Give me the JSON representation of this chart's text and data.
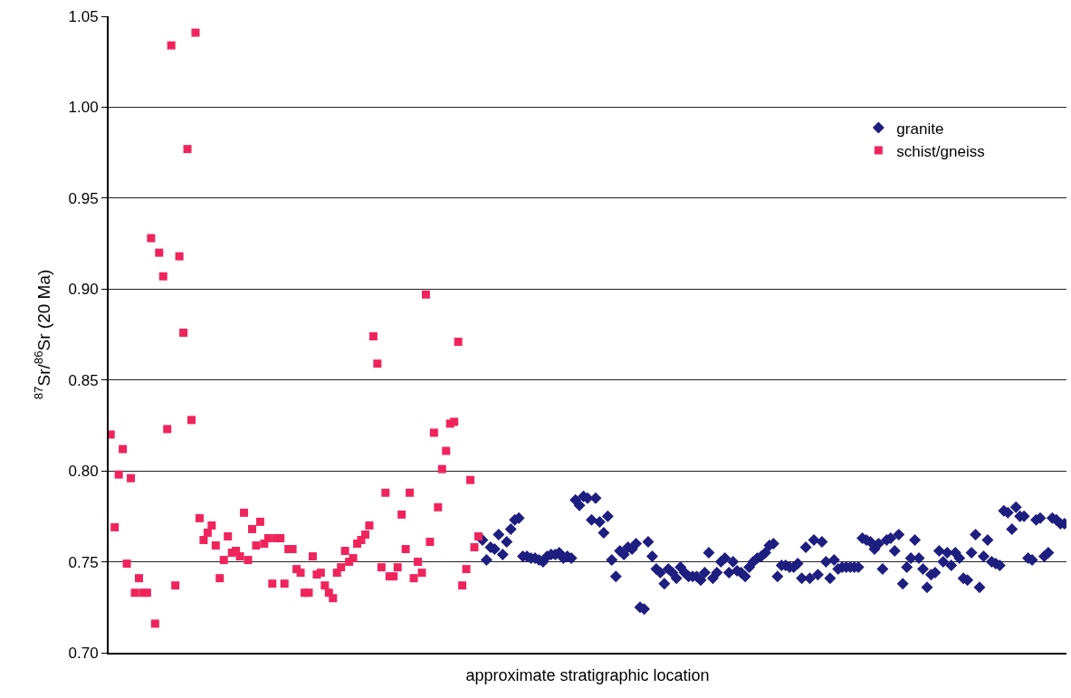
{
  "chart_data": {
    "type": "scatter",
    "xlabel": "approximate stratigraphic location",
    "ylabel": "$^{87}$Sr/$^{86}$Sr (20 Ma)",
    "ylim": [
      0.7,
      1.05
    ],
    "yticks": [
      {
        "value": 0.7,
        "label": "0.70"
      },
      {
        "value": 0.75,
        "label": "0.75"
      },
      {
        "value": 0.8,
        "label": "0.80"
      },
      {
        "value": 0.85,
        "label": "0.85"
      },
      {
        "value": 0.9,
        "label": "0.90"
      },
      {
        "value": 0.95,
        "label": "0.95"
      },
      {
        "value": 1.0,
        "label": "1.00"
      },
      {
        "value": 1.05,
        "label": "1.05"
      }
    ],
    "grid": "y",
    "legend": "top right",
    "categories": [
      null,
      null,
      null,
      null,
      null,
      null,
      null,
      null,
      null,
      null,
      null,
      null,
      null,
      null,
      null,
      null,
      null,
      null,
      null,
      null,
      null,
      null,
      null,
      null,
      null,
      null,
      null,
      null,
      null,
      null,
      null,
      null,
      null,
      null,
      null,
      null,
      null,
      null,
      null,
      null,
      null,
      null,
      null,
      null,
      null,
      null,
      null,
      null,
      null,
      null,
      null,
      null,
      null,
      null,
      null,
      null,
      null,
      null,
      null,
      null,
      null,
      null,
      null,
      null,
      null,
      null,
      null,
      null,
      null,
      null,
      null,
      null,
      null,
      null,
      null,
      null,
      null,
      null,
      null,
      null,
      null,
      null,
      null,
      null,
      null,
      null,
      null,
      null,
      null,
      null,
      null,
      null,
      null,
      null,
      null,
      null,
      null,
      null,
      null,
      null,
      null,
      null,
      null,
      null,
      null,
      null,
      null,
      null,
      null,
      null,
      null,
      null,
      null,
      null,
      null,
      null,
      null,
      null,
      null,
      null,
      null,
      null,
      null,
      null,
      null,
      null,
      null,
      null,
      null,
      null,
      null,
      null,
      null,
      null,
      null,
      null,
      null,
      null,
      null,
      null,
      null,
      null,
      null,
      null,
      null,
      null,
      null,
      null,
      null,
      null,
      null,
      null,
      null,
      null,
      null,
      null,
      null,
      null,
      null,
      null,
      null,
      null,
      null,
      null,
      null,
      null,
      null,
      null,
      null,
      null,
      null,
      null,
      null,
      null,
      null,
      null,
      null,
      null,
      null,
      null,
      null,
      null,
      null,
      null,
      null,
      null,
      null,
      null,
      null,
      null,
      null,
      null,
      null,
      null,
      null,
      null,
      null,
      null,
      null,
      null,
      null,
      null,
      null,
      null,
      null,
      null,
      null,
      null,
      null,
      null,
      null,
      null,
      null,
      null,
      null,
      null,
      null,
      null,
      null,
      null,
      null,
      null,
      null,
      null,
      null,
      null,
      null,
      null,
      null,
      null,
      null,
      null,
      null,
      null,
      null,
      null,
      null
    ],
    "series": [
      {
        "name": "granite",
        "color": "#1e1e80",
        "marker": "diamond",
        "values": [
          null,
          null,
          null,
          null,
          null,
          null,
          null,
          null,
          null,
          null,
          null,
          null,
          null,
          null,
          null,
          null,
          null,
          null,
          null,
          null,
          null,
          null,
          null,
          null,
          null,
          null,
          null,
          null,
          null,
          null,
          null,
          null,
          null,
          null,
          null,
          null,
          null,
          null,
          null,
          null,
          null,
          null,
          null,
          null,
          null,
          null,
          null,
          null,
          null,
          null,
          null,
          null,
          null,
          null,
          null,
          null,
          null,
          null,
          null,
          null,
          null,
          null,
          null,
          null,
          null,
          null,
          null,
          null,
          null,
          null,
          null,
          null,
          null,
          null,
          null,
          null,
          null,
          null,
          null,
          null,
          null,
          null,
          null,
          null,
          null,
          null,
          null,
          null,
          null,
          null,
          null,
          null,
          0.762,
          0.751,
          0.758,
          0.757,
          0.765,
          0.754,
          0.761,
          0.768,
          0.773,
          0.774,
          0.753,
          0.753,
          0.752,
          0.752,
          0.751,
          0.75,
          0.753,
          0.754,
          0.754,
          0.755,
          0.752,
          0.753,
          0.752,
          0.784,
          0.781,
          0.786,
          0.785,
          0.773,
          0.785,
          0.772,
          0.766,
          0.775,
          0.751,
          0.742,
          0.756,
          0.754,
          0.758,
          0.757,
          0.76,
          0.725,
          0.724,
          0.761,
          0.753,
          0.746,
          0.744,
          0.738,
          0.746,
          0.744,
          0.741,
          0.747,
          0.744,
          0.742,
          0.742,
          0.742,
          0.74,
          0.744,
          0.755,
          0.741,
          0.744,
          0.75,
          0.752,
          0.744,
          0.75,
          0.745,
          0.744,
          0.742,
          0.747,
          0.75,
          0.752,
          0.753,
          0.755,
          0.759,
          0.76,
          0.742,
          0.748,
          0.748,
          0.747,
          0.747,
          0.749,
          0.741,
          0.758,
          0.741,
          0.762,
          0.743,
          0.761,
          0.75,
          0.741,
          0.751,
          0.746,
          0.747,
          0.747,
          0.747,
          0.747,
          0.747,
          0.763,
          0.762,
          0.761,
          0.757,
          0.76,
          0.746,
          0.762,
          0.763,
          0.756,
          0.765,
          0.738,
          0.747,
          0.752,
          0.762,
          0.752,
          0.746,
          0.736,
          0.743,
          0.744,
          0.756,
          0.75,
          0.755,
          0.748,
          0.755,
          0.752,
          0.741,
          0.74,
          0.755,
          0.765,
          0.736,
          0.753,
          0.762,
          0.75,
          0.749,
          0.748,
          0.778,
          0.777,
          0.768,
          0.78,
          0.775,
          0.775,
          0.752,
          0.751,
          0.773,
          0.774,
          0.753,
          0.755,
          0.774,
          0.773,
          0.771,
          0.771
        ]
      },
      {
        "name": "schist/gneiss",
        "color": "#f0245c",
        "marker": "square",
        "values": [
          0.82,
          0.769,
          0.798,
          0.812,
          0.749,
          0.796,
          0.733,
          0.741,
          0.733,
          0.733,
          0.928,
          0.716,
          0.92,
          0.907,
          0.823,
          1.034,
          0.737,
          0.918,
          0.876,
          0.977,
          0.828,
          1.041,
          0.774,
          0.762,
          0.766,
          0.77,
          0.759,
          0.741,
          0.751,
          0.764,
          0.755,
          0.756,
          0.753,
          0.777,
          0.751,
          0.768,
          0.759,
          0.772,
          0.76,
          0.763,
          0.738,
          0.763,
          0.763,
          0.738,
          0.757,
          0.757,
          0.746,
          0.744,
          0.733,
          0.733,
          0.753,
          0.743,
          0.744,
          0.737,
          0.733,
          0.73,
          0.744,
          0.747,
          0.756,
          0.75,
          0.752,
          0.76,
          0.762,
          0.765,
          0.77,
          0.874,
          0.859,
          0.747,
          0.788,
          0.742,
          0.742,
          0.747,
          0.776,
          0.757,
          0.788,
          0.741,
          0.75,
          0.744,
          0.897,
          0.761,
          0.821,
          0.78,
          0.801,
          0.811,
          0.826,
          0.827,
          0.871,
          0.737,
          0.746,
          0.795,
          0.758,
          0.764,
          null,
          null,
          null,
          null,
          null,
          null,
          null,
          null,
          null,
          null,
          null,
          null,
          null,
          null,
          null,
          null,
          null,
          null,
          null,
          null,
          null,
          null,
          null,
          null,
          null,
          null,
          null,
          null,
          null,
          null,
          null,
          null,
          null,
          null,
          null,
          null,
          null,
          null,
          null,
          null,
          null,
          null,
          null,
          null,
          null,
          null,
          null,
          null,
          null,
          null,
          null,
          null,
          null,
          null,
          null,
          null,
          null,
          null,
          null,
          null,
          null,
          null,
          null,
          null,
          null,
          null,
          null,
          null,
          null,
          null,
          null,
          null,
          null,
          null,
          null,
          null,
          null,
          null,
          null,
          null,
          null,
          null,
          null,
          null,
          null,
          null,
          null,
          null,
          null,
          null,
          null,
          null,
          null,
          null,
          null,
          null,
          null,
          null,
          null,
          null,
          null,
          null,
          null,
          null,
          null,
          null,
          null,
          null,
          null,
          null,
          null,
          null,
          null,
          null,
          null,
          null,
          null,
          null,
          null,
          null,
          null,
          null,
          null,
          null,
          null,
          null,
          null,
          null,
          null,
          null,
          null,
          null,
          null,
          null,
          null,
          null,
          null,
          null,
          null,
          null,
          null,
          null,
          null,
          null,
          null
        ]
      }
    ]
  }
}
